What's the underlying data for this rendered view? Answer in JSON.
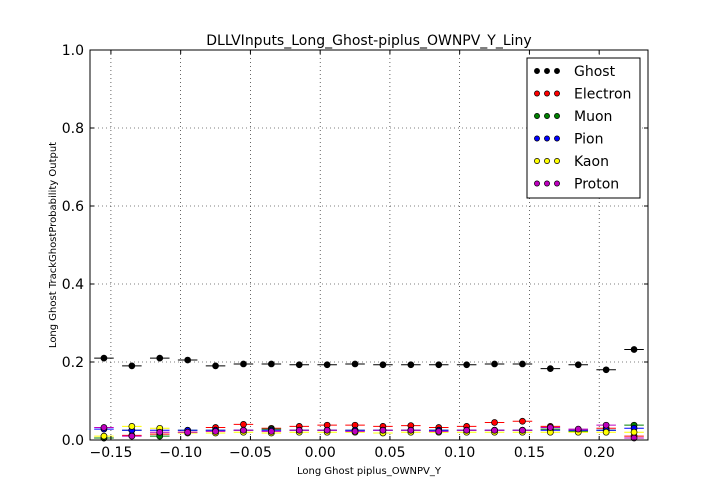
{
  "chart_data": {
    "type": "scatter",
    "title": "DLLVInputs_Long_Ghost-piplus_OWNPV_Y_Liny",
    "xlabel": "Long Ghost piplus_OWNPV_Y",
    "ylabel": "Long Ghost TrackGhostProbability Output",
    "xlim": [
      -0.165,
      0.235
    ],
    "ylim": [
      0.0,
      1.0
    ],
    "xticks": [
      -0.15,
      -0.1,
      -0.05,
      0.0,
      0.05,
      0.1,
      0.15,
      0.2
    ],
    "xtick_labels": [
      "−0.15",
      "−0.10",
      "−0.05",
      "0.00",
      "0.05",
      "0.10",
      "0.15",
      "0.20"
    ],
    "yticks": [
      0.0,
      0.2,
      0.4,
      0.6,
      0.8,
      1.0
    ],
    "ytick_labels": [
      "0.0",
      "0.2",
      "0.4",
      "0.6",
      "0.8",
      "1.0"
    ],
    "grid": true,
    "legend_position": "top-right",
    "x": [
      -0.155,
      -0.135,
      -0.115,
      -0.095,
      -0.075,
      -0.055,
      -0.035,
      -0.015,
      0.005,
      0.025,
      0.045,
      0.065,
      0.085,
      0.105,
      0.125,
      0.145,
      0.165,
      0.185,
      0.205,
      0.225
    ],
    "bin_half_width": 0.007,
    "series": [
      {
        "name": "Ghost",
        "color": "#000000",
        "values": [
          0.21,
          0.19,
          0.21,
          0.205,
          0.19,
          0.195,
          0.195,
          0.193,
          0.193,
          0.195,
          0.193,
          0.193,
          0.193,
          0.193,
          0.195,
          0.195,
          0.183,
          0.193,
          0.18,
          0.232
        ]
      },
      {
        "name": "Electron",
        "color": "#ff0000",
        "values": [
          0.005,
          0.012,
          0.015,
          0.02,
          0.032,
          0.04,
          0.03,
          0.035,
          0.038,
          0.038,
          0.035,
          0.037,
          0.032,
          0.035,
          0.045,
          0.048,
          0.035,
          0.025,
          0.03,
          0.01
        ]
      },
      {
        "name": "Muon",
        "color": "#008000",
        "values": [
          0.005,
          0.025,
          0.01,
          0.025,
          0.025,
          0.025,
          0.028,
          0.025,
          0.025,
          0.025,
          0.025,
          0.025,
          0.025,
          0.025,
          0.025,
          0.025,
          0.028,
          0.022,
          0.025,
          0.038
        ]
      },
      {
        "name": "Pion",
        "color": "#0000ff",
        "values": [
          0.028,
          0.025,
          0.025,
          0.025,
          0.025,
          0.025,
          0.025,
          0.025,
          0.025,
          0.025,
          0.025,
          0.025,
          0.025,
          0.025,
          0.025,
          0.025,
          0.025,
          0.025,
          0.025,
          0.03
        ]
      },
      {
        "name": "Kaon",
        "color": "#ffff00",
        "values": [
          0.01,
          0.035,
          0.03,
          0.018,
          0.018,
          0.02,
          0.018,
          0.02,
          0.02,
          0.02,
          0.018,
          0.02,
          0.02,
          0.02,
          0.02,
          0.02,
          0.02,
          0.02,
          0.02,
          0.02
        ]
      },
      {
        "name": "Proton",
        "color": "#bf00bf",
        "values": [
          0.032,
          0.01,
          0.02,
          0.02,
          0.022,
          0.025,
          0.022,
          0.025,
          0.025,
          0.022,
          0.025,
          0.025,
          0.022,
          0.025,
          0.025,
          0.025,
          0.032,
          0.028,
          0.038,
          0.005
        ]
      }
    ]
  }
}
